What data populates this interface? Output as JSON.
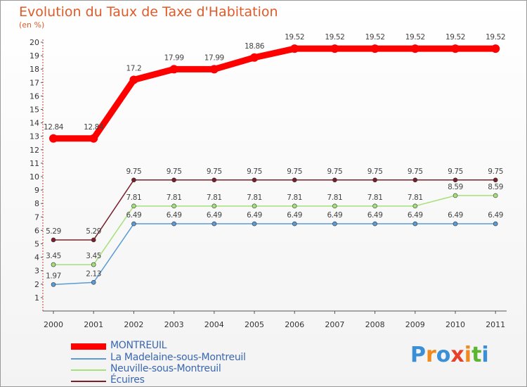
{
  "chart_data": {
    "type": "line",
    "title": "Evolution du Taux de Taxe d'Habitation",
    "unit_label": "(en %)",
    "xlabel": "",
    "ylabel": "(en %)",
    "ylim": [
      0,
      20
    ],
    "grid": false,
    "legend_position": "bottom-left",
    "categories": [
      "2000",
      "2001",
      "2002",
      "2003",
      "2004",
      "2005",
      "2006",
      "2007",
      "2008",
      "2009",
      "2010",
      "2011"
    ],
    "y_ticks": [
      1,
      2,
      3,
      4,
      5,
      6,
      7,
      8,
      9,
      10,
      11,
      12,
      13,
      14,
      15,
      16,
      17,
      18,
      19,
      20
    ],
    "series": [
      {
        "name": "MONTREUIL",
        "color": "#ff0000",
        "values": [
          12.84,
          12.84,
          17.2,
          17.99,
          17.99,
          18.86,
          19.52,
          19.52,
          19.52,
          19.52,
          19.52,
          19.52
        ],
        "labels": [
          "12.84",
          "12.84",
          "17.2",
          "17.99",
          "17.99",
          "18.86",
          "19.52",
          "19.52",
          "19.52",
          "19.52",
          "19.52",
          "19.52"
        ]
      },
      {
        "name": "La Madelaine-sous-Montreuil",
        "color": "#5b9bd5",
        "values": [
          1.97,
          2.13,
          6.49,
          6.49,
          6.49,
          6.49,
          6.49,
          6.49,
          6.49,
          6.49,
          6.49,
          6.49
        ],
        "labels": [
          "1.97",
          "2.13",
          "6.49",
          "6.49",
          "6.49",
          "6.49",
          "6.49",
          "6.49",
          "6.49",
          "6.49",
          "6.49",
          "6.49"
        ]
      },
      {
        "name": "Neuville-sous-Montreuil",
        "color": "#a6e07a",
        "values": [
          3.45,
          3.45,
          7.81,
          7.81,
          7.81,
          7.81,
          7.81,
          7.81,
          7.81,
          7.81,
          8.59,
          8.59
        ],
        "labels": [
          "3.45",
          "3.45",
          "7.81",
          "7.81",
          "7.81",
          "7.81",
          "7.81",
          "7.81",
          "7.81",
          "7.81",
          "8.59",
          "8.59"
        ]
      },
      {
        "name": "Écuires",
        "color": "#7b1f2a",
        "values": [
          5.29,
          5.29,
          9.75,
          9.75,
          9.75,
          9.75,
          9.75,
          9.75,
          9.75,
          9.75,
          9.75,
          9.75
        ],
        "labels": [
          "5.29",
          "5.29",
          "9.75",
          "9.75",
          "9.75",
          "9.75",
          "9.75",
          "9.75",
          "9.75",
          "9.75",
          "9.75",
          "9.75"
        ]
      }
    ]
  },
  "logo": {
    "text": "Proxiti",
    "letters": [
      "P",
      "r",
      "o",
      "x",
      "i",
      "t",
      "i"
    ],
    "colors": [
      "#3a8fd6",
      "#f08a1c",
      "#3a8fd6",
      "#e8402a",
      "#f08a1c",
      "#5bb531",
      "#3a8fd6"
    ]
  }
}
